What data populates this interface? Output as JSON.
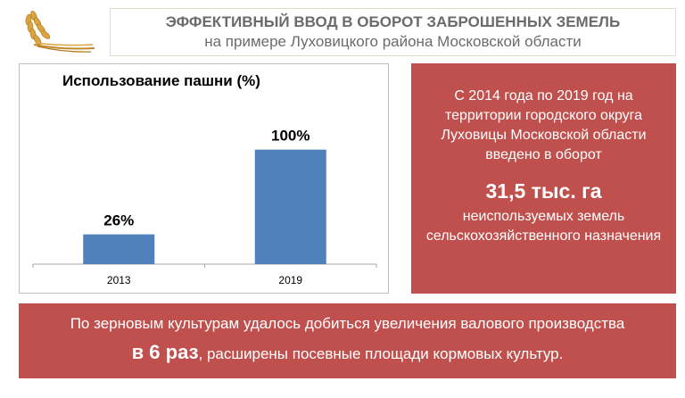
{
  "header": {
    "title": "ЭФФЕКТИВНЫЙ ВВОД В ОБОРОТ ЗАБРОШЕННЫХ ЗЕМЕЛЬ",
    "subtitle": "на примере Луховицкого района Московской области",
    "logo_icon": "wheat-ears-icon"
  },
  "chart_data": {
    "type": "bar",
    "title": "Использование пашни (%)",
    "categories": [
      "2013",
      "2019"
    ],
    "values": [
      26,
      100
    ],
    "data_labels": [
      "26%",
      "100%"
    ],
    "ylim": [
      0,
      120
    ],
    "grid": false,
    "legend": "none",
    "bar_color": "#4f81bd"
  },
  "info_panel": {
    "text_before": "С 2014 года по 2019 год на территории городского округа Луховицы Московской области введено в оборот",
    "highlight": "31,5 тыс. га",
    "text_after": "неиспользуемых земель сельскохозяйственного назначения",
    "bg_color": "#c0504d"
  },
  "footer": {
    "line1": "По зерновым культурам удалось добиться увеличения валового производства",
    "highlight": "в 6 раз",
    "line2_rest": ", расширены посевные площади кормовых культур.",
    "bg_color": "#c0504d"
  }
}
